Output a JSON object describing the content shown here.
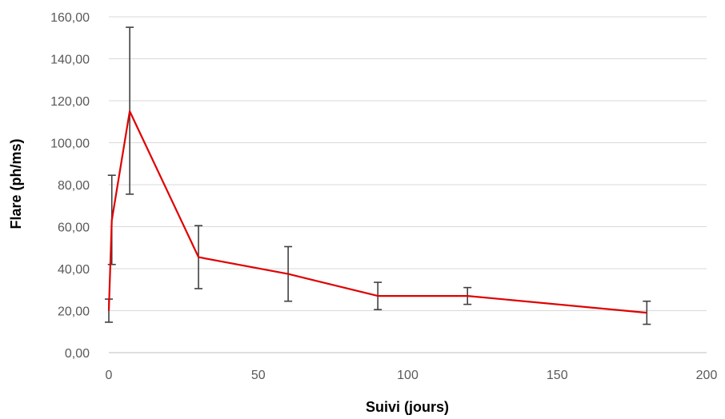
{
  "chart_data": {
    "type": "line",
    "xlabel": "Suivi (jours)",
    "ylabel": "Flare (ph/ms)",
    "xlim": [
      0,
      200
    ],
    "ylim": [
      0,
      160
    ],
    "x_ticks": [
      0,
      50,
      100,
      150,
      200
    ],
    "x_tick_labels": [
      "0",
      "50",
      "100",
      "150",
      "200"
    ],
    "y_ticks": [
      0,
      20,
      40,
      60,
      80,
      100,
      120,
      140,
      160
    ],
    "y_tick_labels": [
      "0,00",
      "20,00",
      "40,00",
      "60,00",
      "80,00",
      "100,00",
      "120,00",
      "140,00",
      "160,00"
    ],
    "grid": "horizontal",
    "legend": "none",
    "series": [
      {
        "color": "#e00000",
        "points": [
          {
            "x": 0,
            "y": 20.0,
            "err_low": 14.5,
            "err_high": 25.5
          },
          {
            "x": 1,
            "y": 63.0,
            "err_low": 42.0,
            "err_high": 84.5
          },
          {
            "x": 7,
            "y": 115.0,
            "err_low": 75.5,
            "err_high": 155.0
          },
          {
            "x": 30,
            "y": 45.5,
            "err_low": 30.5,
            "err_high": 60.5
          },
          {
            "x": 60,
            "y": 37.5,
            "err_low": 24.5,
            "err_high": 50.5
          },
          {
            "x": 90,
            "y": 27.0,
            "err_low": 20.5,
            "err_high": 33.5
          },
          {
            "x": 120,
            "y": 27.0,
            "err_low": 23.0,
            "err_high": 31.0
          },
          {
            "x": 180,
            "y": 19.0,
            "err_low": 13.5,
            "err_high": 24.5
          }
        ]
      }
    ],
    "error_bar_color": "#404040",
    "grid_color": "#d9d9d9"
  }
}
